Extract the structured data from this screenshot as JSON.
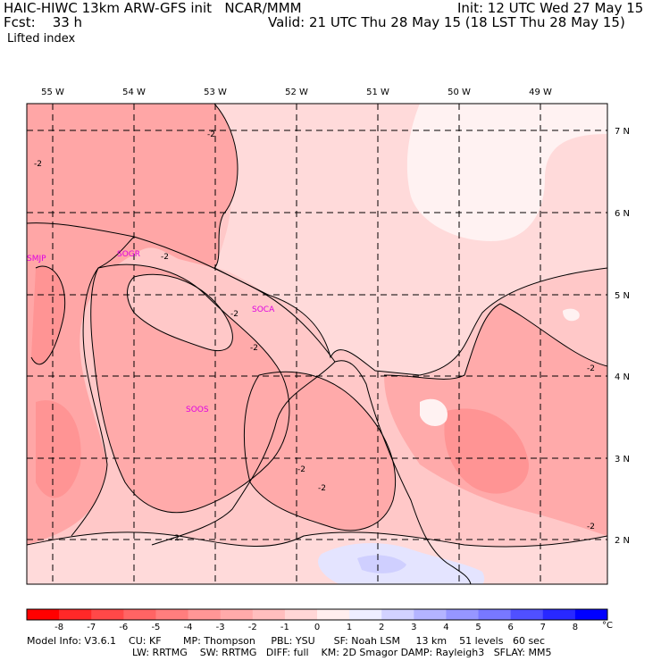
{
  "header": {
    "model_line": "HAIC-HIWC 13km ARW-GFS init   NCAR/MMM",
    "init_line": "Init: 12 UTC Wed 27 May 15",
    "fcst_line": "Fcst:    33 h",
    "valid_line": "Valid: 21 UTC Thu 28 May 15 (18 LST Thu 28 May 15)",
    "field_name": "Lifted index"
  },
  "map": {
    "longitude_labels": [
      "55 W",
      "54 W",
      "53 W",
      "52 W",
      "51 W",
      "50 W",
      "49 W"
    ],
    "latitude_labels": [
      "7 N",
      "6 N",
      "5 N",
      "4 N",
      "3 N",
      "2 N"
    ],
    "stations": [
      "SMJP",
      "SOGR",
      "SOCA",
      "SOOS"
    ],
    "contour_label": "-2"
  },
  "colorbar": {
    "tick_labels": [
      "-8",
      "-7",
      "-6",
      "-5",
      "-4",
      "-3",
      "-2",
      "-1",
      "0",
      "1",
      "2",
      "3",
      "4",
      "5",
      "6",
      "7",
      "8"
    ],
    "unit": "°C",
    "colors": [
      "#ff0000",
      "#ff2828",
      "#ff4848",
      "#ff6464",
      "#ff7e7e",
      "#ff9696",
      "#ffaaaa",
      "#ffbebe",
      "#ffd6d6",
      "#ffeeee",
      "#eeeeff",
      "#d2d2ff",
      "#b4b4ff",
      "#9696ff",
      "#7878ff",
      "#5050ff",
      "#2828ff",
      "#0000ff"
    ]
  },
  "footer": {
    "line1": "Model Info: V3.6.1    CU: KF       MP: Thompson     PBL: YSU      SF: Noah LSM     13 km    51 levels   60 sec",
    "line2": "LW: RRTMG    SW: RRTMG   DIFF: full    KM: 2D Smagor DAMP: Rayleigh3   SFLAY: MM5"
  },
  "colors": {
    "deep_instability": "#ff8c8c",
    "moderate_instability": "#ffa6a6",
    "weak_instability": "#ffc8c8",
    "near_neutral": "#ffe4e4",
    "stable": "#e4e4ff",
    "station_label": "#e000e0"
  }
}
